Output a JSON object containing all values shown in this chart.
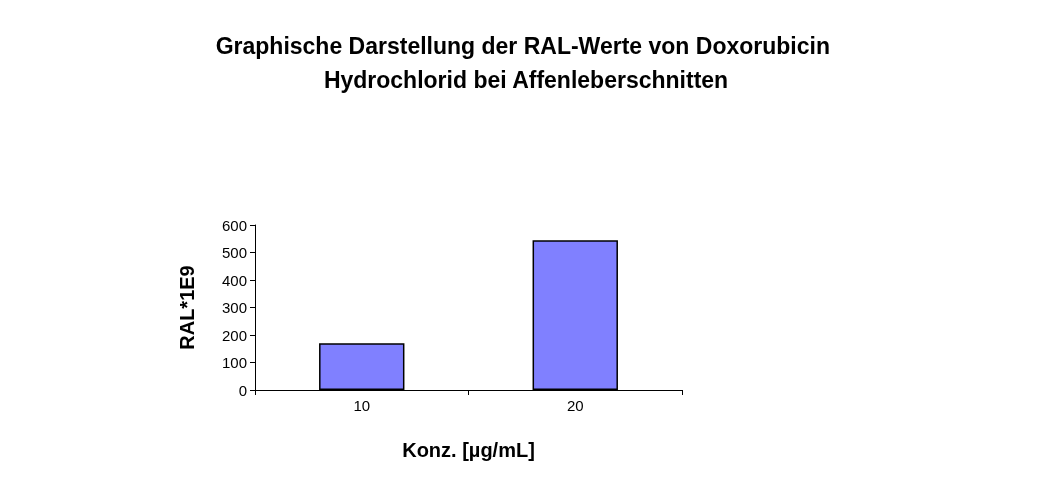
{
  "chart_data": {
    "type": "bar",
    "title": "Graphische Darstellung der RAL-Werte von Doxorubicin Hydrochlorid bei Affenleberschnitten",
    "xlabel": "Konz. [µg/mL]",
    "ylabel": "RAL*1E9",
    "categories": [
      "10",
      "20"
    ],
    "values": [
      170,
      545
    ],
    "color": "#8080ff",
    "ylim": [
      0,
      600
    ],
    "yticks": [
      0,
      100,
      200,
      300,
      400,
      500,
      600
    ],
    "grid": false
  }
}
